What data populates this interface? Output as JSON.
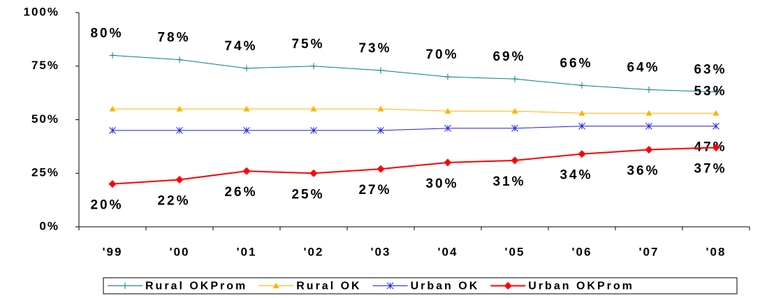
{
  "chart_data": {
    "type": "line",
    "categories": [
      "'99",
      "'00",
      "'01",
      "'02",
      "'03",
      "'04",
      "'05",
      "'06",
      "'07",
      "'08"
    ],
    "ylim": [
      0,
      100
    ],
    "yticks": [
      {
        "value": 0,
        "label": "0%"
      },
      {
        "value": 25,
        "label": "25%"
      },
      {
        "value": 50,
        "label": "50%"
      },
      {
        "value": 75,
        "label": "75%"
      },
      {
        "value": 100,
        "label": "100%"
      }
    ],
    "legend": "bottom",
    "series": [
      {
        "name": "Rural OKProm",
        "color": "#008080",
        "marker": "plus",
        "values": [
          80,
          78,
          74,
          75,
          73,
          70,
          69,
          66,
          64,
          63
        ],
        "value_labels": [
          "80%",
          "78%",
          "74%",
          "75%",
          "73%",
          "70%",
          "69%",
          "66%",
          "64%",
          "63%"
        ]
      },
      {
        "name": "Rural OK",
        "color": "#ffb300",
        "marker": "triangle",
        "values": [
          55,
          55,
          55,
          55,
          55,
          54,
          54,
          53,
          53,
          53
        ],
        "value_labels": [
          null,
          null,
          null,
          null,
          null,
          null,
          null,
          null,
          null,
          "53%"
        ]
      },
      {
        "name": "Urban OK",
        "color": "#1f1fdf",
        "marker": "star",
        "values": [
          45,
          45,
          45,
          45,
          45,
          46,
          46,
          47,
          47,
          47
        ],
        "value_labels": [
          null,
          null,
          null,
          null,
          null,
          null,
          null,
          null,
          null,
          "47%"
        ]
      },
      {
        "name": "Urban OKProm",
        "color": "#ff0000",
        "marker": "diamond",
        "values": [
          20,
          22,
          26,
          25,
          27,
          30,
          31,
          34,
          36,
          37
        ],
        "value_labels": [
          "20%",
          "22%",
          "26%",
          "25%",
          "27%",
          "30%",
          "31%",
          "34%",
          "36%",
          "37%"
        ]
      }
    ]
  }
}
